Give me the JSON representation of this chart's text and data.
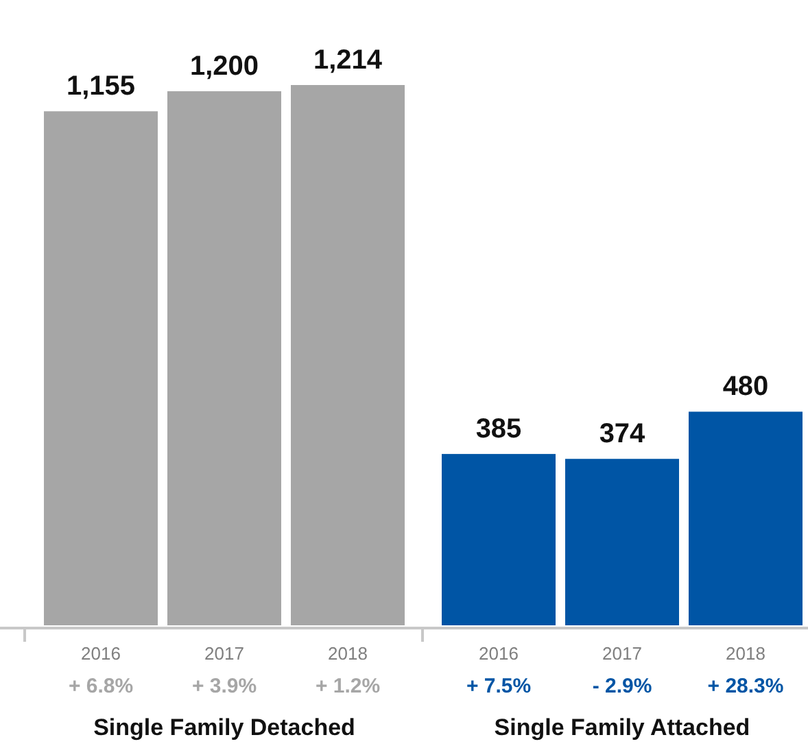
{
  "chart_data": {
    "type": "bar",
    "categories": [
      "2016",
      "2017",
      "2018",
      "2016",
      "2017",
      "2018"
    ],
    "values": [
      1155,
      1200,
      1214,
      385,
      374,
      480
    ],
    "colors": [
      "#a6a6a6",
      "#a6a6a6",
      "#a6a6a6",
      "#0055a5",
      "#0055a5",
      "#0055a5"
    ],
    "value_labels": [
      "1,155",
      "1,200",
      "1,214",
      "385",
      "374",
      "480"
    ],
    "annotations": [
      "+ 6.8%",
      "+ 3.9%",
      "+ 1.2%",
      "+ 7.5%",
      "- 2.9%",
      "+ 28.3%",
      "Single Family Detached",
      "Single Family Attached"
    ]
  }
}
